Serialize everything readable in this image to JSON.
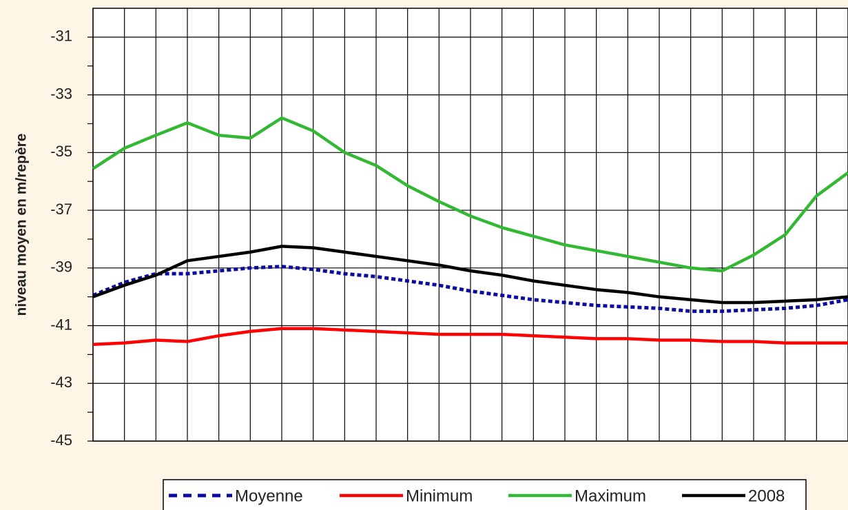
{
  "chart_data": {
    "type": "line",
    "y_label": "niveau moyen en m/repère",
    "categories": [
      null,
      null,
      null,
      null,
      null,
      null,
      null,
      null,
      null,
      null,
      null,
      null,
      null,
      null,
      null,
      null,
      null,
      null,
      null,
      null,
      null,
      null,
      null,
      null,
      null
    ],
    "ylim": [
      -45,
      -30
    ],
    "yticks": [
      -45,
      -43,
      -41,
      -39,
      -37,
      -35,
      -33,
      -31
    ],
    "yminorticks": [
      -44,
      -42,
      -40,
      -38,
      -36,
      -34,
      -32
    ],
    "grid": true,
    "legend": "bottom",
    "series": [
      {
        "name": "Moyenne",
        "color": "#0a0aa0",
        "dashed": true,
        "values": [
          -39.95,
          -39.5,
          -39.2,
          -39.2,
          -39.1,
          -39.0,
          -38.95,
          -39.05,
          -39.2,
          -39.3,
          -39.45,
          -39.6,
          -39.8,
          -39.95,
          -40.1,
          -40.2,
          -40.3,
          -40.35,
          -40.4,
          -40.5,
          -40.5,
          -40.45,
          -40.4,
          -40.3,
          -40.1
        ]
      },
      {
        "name": "Minimum",
        "color": "#ff0000",
        "dashed": false,
        "values": [
          -41.65,
          -41.6,
          -41.5,
          -41.55,
          -41.35,
          -41.2,
          -41.1,
          -41.1,
          -41.15,
          -41.2,
          -41.25,
          -41.3,
          -41.3,
          -41.3,
          -41.35,
          -41.4,
          -41.45,
          -41.45,
          -41.5,
          -41.5,
          -41.55,
          -41.55,
          -41.6,
          -41.6,
          -41.6
        ]
      },
      {
        "name": "Maximum",
        "color": "#33b833",
        "dashed": false,
        "values": [
          -35.56,
          -34.85,
          -34.4,
          -33.97,
          -34.4,
          -34.5,
          -33.8,
          -34.25,
          -35.0,
          -35.45,
          -36.15,
          -36.7,
          -37.2,
          -37.6,
          -37.9,
          -38.2,
          -38.4,
          -38.6,
          -38.8,
          -39.0,
          -39.1,
          -38.55,
          -37.85,
          -36.5,
          -35.7
        ]
      },
      {
        "name": "2008",
        "color": "#000000",
        "dashed": false,
        "values": [
          -40.0,
          -39.6,
          -39.25,
          -38.75,
          -38.6,
          -38.45,
          -38.25,
          -38.3,
          -38.45,
          -38.6,
          -38.75,
          -38.9,
          -39.1,
          -39.25,
          -39.45,
          -39.6,
          -39.75,
          -39.85,
          -40.0,
          -40.1,
          -40.2,
          -40.2,
          -40.15,
          -40.1,
          -40.0
        ]
      }
    ]
  }
}
